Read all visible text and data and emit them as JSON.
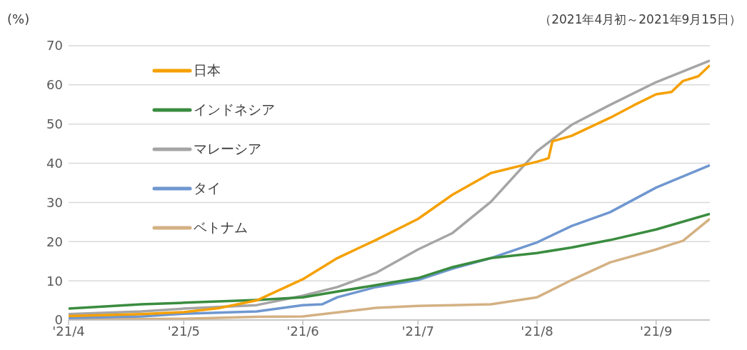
{
  "chart_data": {
    "type": "line",
    "ylabel": "(%)",
    "subtitle": "（2021年4月初～2021年9月15日）",
    "xlim": [
      "2021-04-01",
      "2021-09-15"
    ],
    "xticks": [
      {
        "value": "2021-04-01",
        "label": "'21/4"
      },
      {
        "value": "2021-05-01",
        "label": "'21/5"
      },
      {
        "value": "2021-06-01",
        "label": "'21/6"
      },
      {
        "value": "2021-07-01",
        "label": "'21/7"
      },
      {
        "value": "2021-08-01",
        "label": "'21/8"
      },
      {
        "value": "2021-09-01",
        "label": "'21/9"
      }
    ],
    "ylim": [
      0,
      70
    ],
    "yticks": [
      0,
      10,
      20,
      30,
      40,
      50,
      60,
      70
    ],
    "grid": "y",
    "legend": "top left",
    "marker": "none",
    "line_style": "solid",
    "series": [
      {
        "name": "日本",
        "color": "#f5a000",
        "x": [
          "2021-04-01",
          "2021-04-20",
          "2021-05-01",
          "2021-05-10",
          "2021-05-20",
          "2021-06-01",
          "2021-06-10",
          "2021-06-20",
          "2021-07-01",
          "2021-07-10",
          "2021-07-20",
          "2021-08-01",
          "2021-08-04",
          "2021-08-05",
          "2021-08-10",
          "2021-08-20",
          "2021-08-26",
          "2021-09-01",
          "2021-09-05",
          "2021-09-08",
          "2021-09-12",
          "2021-09-15"
        ],
        "values": [
          1,
          1.5,
          2,
          3,
          5,
          10.4,
          15.8,
          20.4,
          25.8,
          32,
          37.5,
          40.4,
          41.3,
          45.6,
          47,
          51.6,
          54.7,
          57.6,
          58.2,
          61,
          62.2,
          65
        ]
      },
      {
        "name": "インドネシア",
        "color": "#3a8c3f",
        "x": [
          "2021-04-01",
          "2021-04-20",
          "2021-05-01",
          "2021-05-20",
          "2021-06-01",
          "2021-06-20",
          "2021-07-01",
          "2021-07-10",
          "2021-07-20",
          "2021-08-01",
          "2021-08-10",
          "2021-08-20",
          "2021-09-01",
          "2021-09-15"
        ],
        "values": [
          2.9,
          4,
          4.4,
          5.1,
          5.8,
          8.9,
          10.7,
          13.5,
          15.8,
          17.1,
          18.5,
          20.4,
          23.1,
          27.1
        ]
      },
      {
        "name": "マレーシア",
        "color": "#a5a5a5",
        "x": [
          "2021-04-01",
          "2021-04-20",
          "2021-05-01",
          "2021-05-20",
          "2021-06-01",
          "2021-06-10",
          "2021-06-20",
          "2021-07-01",
          "2021-07-10",
          "2021-07-20",
          "2021-08-01",
          "2021-08-10",
          "2021-08-20",
          "2021-09-01",
          "2021-09-15"
        ],
        "values": [
          1.5,
          2.2,
          2.9,
          3.8,
          6.2,
          8.4,
          12,
          18,
          22.2,
          30.2,
          43.1,
          49.8,
          54.9,
          60.7,
          66.2
        ]
      },
      {
        "name": "タイ",
        "color": "#6f97d0",
        "x": [
          "2021-04-01",
          "2021-04-20",
          "2021-05-01",
          "2021-05-20",
          "2021-06-01",
          "2021-06-06",
          "2021-06-10",
          "2021-06-20",
          "2021-07-01",
          "2021-07-10",
          "2021-07-20",
          "2021-08-01",
          "2021-08-10",
          "2021-08-20",
          "2021-09-01",
          "2021-09-15"
        ],
        "values": [
          0.5,
          0.9,
          1.6,
          2.2,
          3.8,
          4,
          5.8,
          8.4,
          10.2,
          13.1,
          15.8,
          19.8,
          24,
          27.5,
          33.8,
          39.5
        ]
      },
      {
        "name": "ベトナム",
        "color": "#d4b183",
        "x": [
          "2021-04-01",
          "2021-05-01",
          "2021-05-20",
          "2021-06-01",
          "2021-06-20",
          "2021-07-01",
          "2021-07-10",
          "2021-07-20",
          "2021-08-01",
          "2021-08-10",
          "2021-08-20",
          "2021-09-01",
          "2021-09-05",
          "2021-09-08",
          "2021-09-15"
        ],
        "values": [
          0.1,
          0.3,
          0.8,
          0.9,
          3.1,
          3.6,
          3.8,
          4,
          5.8,
          10.2,
          14.7,
          18,
          19.3,
          20.2,
          25.8
        ]
      }
    ]
  }
}
